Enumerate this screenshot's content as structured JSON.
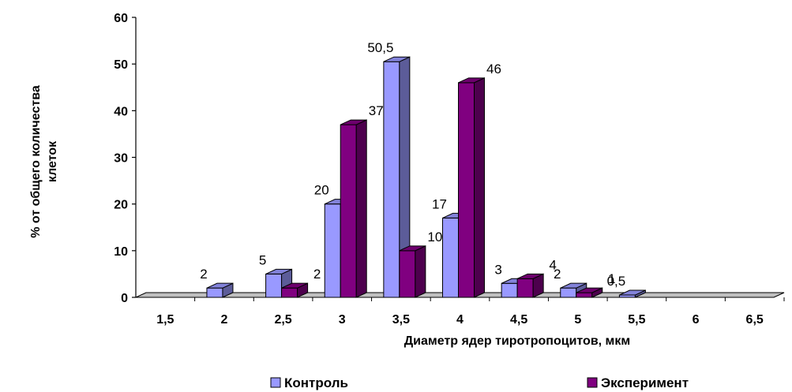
{
  "chart_data": {
    "type": "bar",
    "title": "",
    "xlabel": "Диаметр ядер тиротропоцитов, мкм",
    "ylabel_line1": "% от общего количества",
    "ylabel_line2": "клеток",
    "categories": [
      "1,5",
      "2",
      "2,5",
      "3",
      "3,5",
      "4",
      "4,5",
      "5",
      "5,5",
      "6",
      "6,5"
    ],
    "ylim": [
      0,
      60
    ],
    "yticks": [
      0,
      10,
      20,
      30,
      40,
      50,
      60
    ],
    "three_d": true,
    "grid": false,
    "legend_position": "bottom",
    "series": [
      {
        "name": "Контроль",
        "color": "#9999ff",
        "values": [
          0,
          2,
          5,
          20,
          50.5,
          17,
          3,
          2,
          0.5,
          0,
          0
        ],
        "labels": [
          "",
          "2",
          "5",
          "20",
          "50,5",
          "17",
          "3",
          "2",
          "0,5",
          "",
          ""
        ]
      },
      {
        "name": "Эксперимент",
        "color": "#800080",
        "values": [
          0,
          0,
          2,
          37,
          10,
          46,
          4,
          1,
          0,
          0,
          0
        ],
        "labels": [
          "",
          "",
          "2",
          "37",
          "10",
          "46",
          "4",
          "1",
          "",
          "",
          ""
        ]
      }
    ]
  }
}
